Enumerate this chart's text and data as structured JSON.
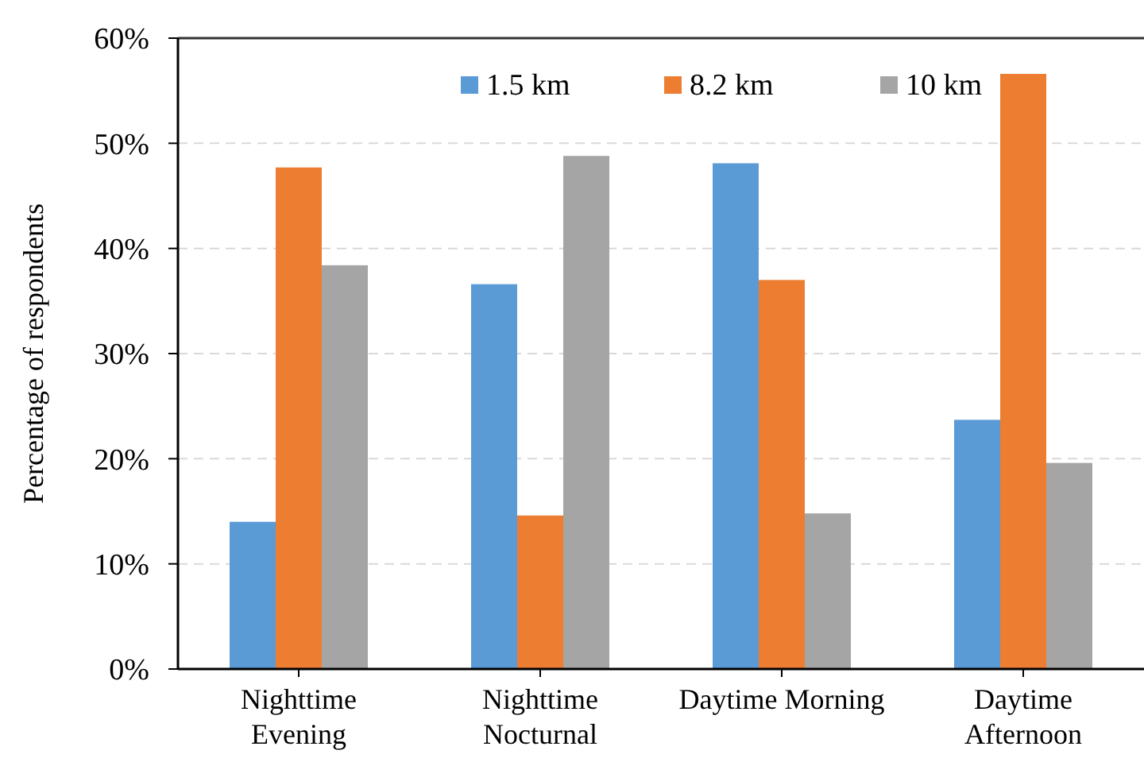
{
  "chart_data": {
    "type": "bar",
    "ylabel": "Percentage of respondents",
    "categories": [
      "Nighttime\nEvening",
      "Nighttime\nNocturnal",
      "Daytime Morning",
      "Daytime\nAfternoon"
    ],
    "series": [
      {
        "name": "1.5 km",
        "color": "#5b9bd5",
        "values": [
          14.0,
          36.6,
          48.1,
          23.7
        ]
      },
      {
        "name": "8.2 km",
        "color": "#ed7d31",
        "values": [
          47.7,
          14.6,
          37.0,
          56.6
        ]
      },
      {
        "name": "10 km",
        "color": "#a5a5a5",
        "values": [
          38.4,
          48.8,
          14.8,
          19.6
        ]
      }
    ],
    "ylim": [
      0,
      60
    ],
    "yticks": [
      {
        "value": 0,
        "label": "0%"
      },
      {
        "value": 10,
        "label": "10%"
      },
      {
        "value": 20,
        "label": "20%"
      },
      {
        "value": 30,
        "label": "30%"
      },
      {
        "value": 40,
        "label": "40%"
      },
      {
        "value": 50,
        "label": "50%"
      },
      {
        "value": 60,
        "label": "60%"
      }
    ],
    "grid": "y",
    "legend": "top"
  }
}
